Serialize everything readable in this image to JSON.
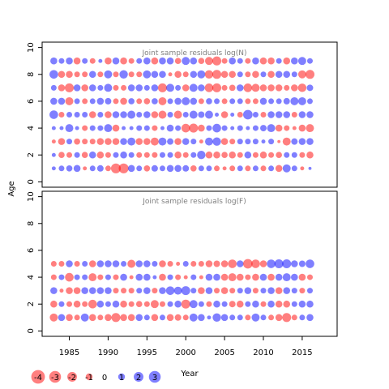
{
  "chart_data": [
    {
      "type": "scatter",
      "title": "Joint sample residuals log(N)",
      "xlabel": "",
      "ylabel": "Age",
      "xlim": [
        1981.5,
        2019.5
      ],
      "ylim": [
        -0.4,
        10.4
      ],
      "x_ticks": [
        1985,
        1990,
        1995,
        2000,
        2005,
        2010,
        2015
      ],
      "y_ticks": [
        0,
        2,
        4,
        6,
        8,
        10
      ],
      "y_tick_labels": [
        "0",
        "2",
        "4",
        "6",
        "8",
        "10"
      ],
      "x_tick_labels": [
        "1985",
        "1990",
        "1995",
        "2000",
        "2005",
        "2010",
        "2015"
      ],
      "years": [
        1983,
        1984,
        1985,
        1986,
        1987,
        1988,
        1989,
        1990,
        1991,
        1992,
        1993,
        1994,
        1995,
        1996,
        1997,
        1998,
        1999,
        2000,
        2001,
        2002,
        2003,
        2004,
        2005,
        2006,
        2007,
        2008,
        2009,
        2010,
        2011,
        2012,
        2013,
        2014,
        2015,
        2016
      ],
      "ages": [
        1,
        2,
        3,
        4,
        5,
        6,
        7,
        8,
        9
      ],
      "residuals": [
        [
          0.5,
          1,
          1.2,
          1.5,
          -0.5,
          1,
          1.3,
          -1,
          -3,
          -3,
          1.5,
          1,
          -1.2,
          1.3,
          1,
          1.5,
          1.5,
          1.3,
          -1.2,
          1,
          1,
          -1,
          -0.5,
          -1,
          1,
          -1,
          1,
          -1,
          1,
          -1.5,
          2,
          1,
          -0.5,
          0.3
        ],
        [
          0.5,
          -1.2,
          -1,
          1,
          -1.2,
          1.5,
          -1.5,
          -1,
          1,
          1.5,
          1,
          -1,
          -1,
          -1,
          1,
          1,
          -1.5,
          -1,
          1,
          2.2,
          -1.5,
          -1.5,
          -1.2,
          -1.5,
          -1,
          1.5,
          -1,
          -1.5,
          -1,
          -1.2,
          1,
          1,
          -1,
          -1.5
        ],
        [
          -0.5,
          -1.5,
          1,
          -1.2,
          -1,
          -1,
          -1.5,
          -1.5,
          -1.5,
          1.5,
          2,
          -1.5,
          -1.5,
          -2,
          2,
          1.3,
          -1.5,
          1.5,
          1,
          -0.5,
          2,
          2.2,
          -1.5,
          -1,
          1,
          1,
          1,
          0.5,
          1,
          -0.3,
          -2,
          1.3,
          1.5,
          1.5
        ],
        [
          0.5,
          0.5,
          2,
          0.5,
          -1,
          1,
          1,
          2,
          -1.5,
          0.5,
          0.5,
          1,
          1,
          -1,
          0.5,
          1.5,
          1,
          -2.3,
          -2.5,
          -1.5,
          1,
          2.3,
          1,
          0.5,
          1,
          0.5,
          1,
          1.3,
          2,
          -1.5,
          -1,
          -0.5,
          -1.5,
          -2
        ],
        [
          2.3,
          -1,
          1,
          1,
          1,
          -1.5,
          1,
          -1.5,
          1.5,
          1.5,
          2,
          1,
          1.5,
          -1.5,
          -2,
          1,
          -2,
          1,
          2,
          1.3,
          2,
          0.5,
          -1.5,
          0.5,
          -1,
          2.8,
          1,
          -1,
          1.5,
          1.5,
          1.5,
          -1,
          1.5,
          1.5
        ],
        [
          1.5,
          1.5,
          -2,
          1,
          -1,
          1,
          1.5,
          1.3,
          -1,
          -1.5,
          1.2,
          -1,
          -1.2,
          1.2,
          -2,
          1,
          1.5,
          2,
          1.5,
          -1,
          1.2,
          1,
          -1,
          1,
          1,
          -1,
          -1,
          1.5,
          1,
          1,
          1.3,
          2,
          2,
          1
        ],
        [
          1,
          -1.5,
          -2.5,
          1.5,
          -1.5,
          1.5,
          1,
          2,
          -1,
          -1,
          1.5,
          1.5,
          1,
          1.5,
          -2.5,
          2,
          1,
          -1.5,
          2,
          1.5,
          -2.3,
          -2.5,
          -1,
          -1.2,
          1.5,
          -2.3,
          -2,
          -1.5,
          -1.5,
          -1.5,
          -1,
          -1.5,
          -2.2,
          1.3
        ],
        [
          2.3,
          -1.5,
          -1.5,
          -1,
          -1,
          1.5,
          -1,
          2,
          -1,
          2.2,
          -1,
          -1,
          2,
          1.5,
          1.5,
          -0.5,
          -1.5,
          -1,
          1.5,
          2,
          -2.2,
          -2.5,
          -1.5,
          -1.5,
          1,
          -1,
          -1.5,
          1,
          -1.5,
          1.5,
          1.5,
          1,
          -2,
          -2.5
        ],
        [
          1.5,
          1,
          1.5,
          -1.5,
          1,
          -1,
          0.5,
          -1.5,
          1.5,
          -1.5,
          -1,
          1,
          1.5,
          -1.5,
          1.5,
          1.5,
          -1.2,
          2,
          1.5,
          -1.2,
          -2,
          -2.5,
          -1,
          1.5,
          1,
          -1,
          1.5,
          -1.5,
          -1.5,
          1,
          -1.5,
          1.5,
          2,
          1
        ]
      ]
    },
    {
      "type": "scatter",
      "title": "Joint sample residuals log(F)",
      "xlabel": "Year",
      "ylabel": "Age",
      "xlim": [
        1981.5,
        2019.5
      ],
      "ylim": [
        -0.4,
        10.4
      ],
      "x_ticks": [
        1985,
        1990,
        1995,
        2000,
        2005,
        2010,
        2015
      ],
      "y_ticks": [
        0,
        2,
        4,
        6,
        8,
        10
      ],
      "y_tick_labels": [
        "0",
        "2",
        "4",
        "6",
        "8",
        "10"
      ],
      "x_tick_labels": [
        "1985",
        "1990",
        "1995",
        "2000",
        "2005",
        "2010",
        "2015"
      ],
      "years": [
        1983,
        1984,
        1985,
        1986,
        1987,
        1988,
        1989,
        1990,
        1991,
        1992,
        1993,
        1994,
        1995,
        1996,
        1997,
        1998,
        1999,
        2000,
        2001,
        2002,
        2003,
        2004,
        2005,
        2006,
        2007,
        2008,
        2009,
        2010,
        2011,
        2012,
        2013,
        2014,
        2015,
        2016
      ],
      "ages": [
        1,
        2,
        3,
        4,
        5
      ],
      "residuals": [
        [
          -2,
          1.5,
          -1.5,
          -1,
          2,
          -1.5,
          -1,
          -1.5,
          -2.5,
          -1.5,
          -1.5,
          1.5,
          1,
          -1.5,
          1,
          -1.5,
          -1.3,
          -1,
          2,
          1.5,
          0.5,
          2.2,
          1.5,
          1,
          1,
          -1,
          2,
          1,
          -1,
          -1.5,
          -2.5,
          -1,
          1,
          1.5
        ],
        [
          -1.5,
          1,
          -1,
          -1.5,
          -1,
          -2.3,
          1.5,
          1,
          1.5,
          -1.5,
          -1,
          -1.2,
          -1,
          -2,
          -1,
          1,
          1.5,
          -2.5,
          2,
          1,
          -1,
          1.5,
          1,
          -1.3,
          -1.5,
          1,
          1.5,
          -1,
          1.5,
          -1.5,
          -1.5,
          1,
          1.5,
          1.5
        ],
        [
          1.5,
          -0.5,
          -1.5,
          -1.5,
          1.5,
          1.5,
          1.5,
          1.5,
          -1,
          -1,
          -1,
          1,
          1.5,
          -1,
          1.5,
          2.3,
          2,
          2.5,
          1,
          -1.5,
          1.5,
          -1,
          -1.5,
          -1,
          1,
          1.5,
          -1,
          1,
          1.5,
          -1.5,
          1.5,
          1,
          -1,
          1
        ],
        [
          -1,
          1,
          -2.3,
          1,
          1,
          -2,
          -1,
          1,
          -1,
          1.5,
          -0.5,
          1.5,
          1.5,
          0.5,
          -1.5,
          1,
          -1,
          -0.5,
          1,
          -0.5,
          1.5,
          1.5,
          -1.5,
          -2,
          -1.5,
          -1,
          -1.5,
          1.5,
          -1.5,
          1.5,
          2,
          1.5,
          -1.5,
          -1
        ],
        [
          -1,
          -1,
          1.5,
          -1,
          1,
          -1.5,
          1.5,
          1.5,
          1.5,
          1,
          -2,
          1.5,
          1.5,
          1,
          -1.5,
          -1,
          -0.5,
          1,
          -1,
          -1,
          -1.5,
          -1.3,
          -1.5,
          -2.3,
          1.5,
          -2.8,
          -2.3,
          -1.5,
          2.3,
          2.5,
          2.5,
          1.5,
          1.3,
          2.3
        ]
      ]
    }
  ],
  "legend": {
    "values": [
      "-4",
      "-3",
      "-2",
      "-1",
      "0",
      "1",
      "2",
      "3"
    ],
    "numbers": [
      -4,
      -3,
      -2,
      -1,
      0,
      1,
      2,
      3
    ]
  },
  "colors": {
    "positive": "#0000ff",
    "negative": "#ff0000",
    "title": "#808080"
  },
  "axes": {
    "ylabel": "Age",
    "xlabel": "Year"
  }
}
